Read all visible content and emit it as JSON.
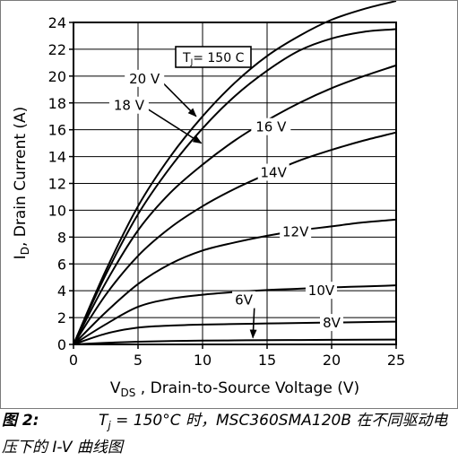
{
  "chart_data": {
    "type": "line",
    "xlabel": "V_DS , Drain-to-Source Voltage (V)",
    "xlabel_main": "V",
    "xlabel_sub": "DS",
    "xlabel_rest": " , Drain-to-Source Voltage (V)",
    "ylabel_main": "I",
    "ylabel_sub": "D",
    "ylabel_rest": ", Drain Current (A)",
    "xlim": [
      0,
      25
    ],
    "ylim": [
      0,
      24
    ],
    "xticks": [
      0,
      5,
      10,
      15,
      20,
      25
    ],
    "yticks": [
      0,
      2,
      4,
      6,
      8,
      10,
      12,
      14,
      16,
      18,
      20,
      22,
      24
    ],
    "grid": true,
    "annotation_box": {
      "main": "T",
      "sub": "J",
      "rest": "= 150 C"
    },
    "series": [
      {
        "name": "20 V",
        "x": [
          0,
          2.5,
          5,
          7.5,
          10,
          12.5,
          15,
          17.5,
          20,
          22.5,
          25
        ],
        "y": [
          0,
          5.5,
          10.3,
          14.0,
          17.0,
          19.5,
          21.5,
          23.0,
          24.2,
          25.0,
          25.6
        ]
      },
      {
        "name": "18 V",
        "x": [
          0,
          2.5,
          5,
          7.5,
          10,
          12.5,
          15,
          17.5,
          20,
          22.5,
          25
        ],
        "y": [
          0,
          5.2,
          9.7,
          13.2,
          16.1,
          18.5,
          20.4,
          21.9,
          22.8,
          23.3,
          23.5
        ]
      },
      {
        "name": "16 V",
        "x": [
          0,
          2.5,
          5,
          7.5,
          10,
          12.5,
          15,
          17.5,
          20,
          22.5,
          25
        ],
        "y": [
          0,
          4.6,
          8.5,
          11.3,
          13.4,
          15.2,
          16.7,
          18.0,
          19.1,
          20.0,
          20.8
        ]
      },
      {
        "name": "14V",
        "x": [
          0,
          2.5,
          5,
          7.5,
          10,
          12.5,
          15,
          17.5,
          20,
          22.5,
          25
        ],
        "y": [
          0,
          3.7,
          6.6,
          8.7,
          10.3,
          11.6,
          12.7,
          13.7,
          14.5,
          15.2,
          15.8
        ]
      },
      {
        "name": "12V",
        "x": [
          0,
          2.5,
          5,
          7.5,
          10,
          12.5,
          15,
          17.5,
          20,
          22.5,
          25
        ],
        "y": [
          0,
          2.4,
          4.5,
          6.0,
          7.0,
          7.6,
          8.1,
          8.5,
          8.8,
          9.1,
          9.3
        ]
      },
      {
        "name": "10V",
        "x": [
          0,
          2.5,
          5,
          7.5,
          10,
          12.5,
          15,
          17.5,
          20,
          22.5,
          25
        ],
        "y": [
          0,
          1.5,
          2.8,
          3.4,
          3.7,
          3.9,
          4.05,
          4.15,
          4.25,
          4.32,
          4.4
        ]
      },
      {
        "name": "8V",
        "x": [
          0,
          2.5,
          5,
          7.5,
          10,
          12.5,
          15,
          17.5,
          20,
          22.5,
          25
        ],
        "y": [
          0,
          0.8,
          1.25,
          1.4,
          1.48,
          1.52,
          1.56,
          1.6,
          1.63,
          1.66,
          1.7
        ]
      },
      {
        "name": "6V",
        "x": [
          0,
          2.5,
          5,
          7.5,
          10,
          12.5,
          15,
          17.5,
          20,
          22.5,
          25
        ],
        "y": [
          0,
          0.12,
          0.2,
          0.25,
          0.28,
          0.3,
          0.32,
          0.33,
          0.34,
          0.35,
          0.36
        ]
      }
    ],
    "series_labels": [
      {
        "text": "20 V",
        "x": 5.5,
        "y": 19.8,
        "arrow_to": [
          9.5,
          17.0
        ]
      },
      {
        "text": "18 V",
        "x": 4.3,
        "y": 17.8,
        "arrow_to": [
          9.9,
          15.0
        ]
      },
      {
        "text": "16 V",
        "x": 15.3,
        "y": 16.2
      },
      {
        "text": "14V",
        "x": 15.5,
        "y": 12.8
      },
      {
        "text": "12V",
        "x": 17.2,
        "y": 8.4
      },
      {
        "text": "10V",
        "x": 19.2,
        "y": 4.0
      },
      {
        "text": "6V",
        "x": 13.2,
        "y": 3.3,
        "arrow_to": [
          13.9,
          0.5
        ]
      },
      {
        "text": "8V",
        "x": 20.0,
        "y": 1.6
      }
    ]
  },
  "caption": {
    "figure_label": "图 2:",
    "text_t": "T",
    "text_sub": "j",
    "text_rest": " = 150°C 时，MSC360SMA120B 在不同驱动电压下的 I-V 曲线图"
  }
}
